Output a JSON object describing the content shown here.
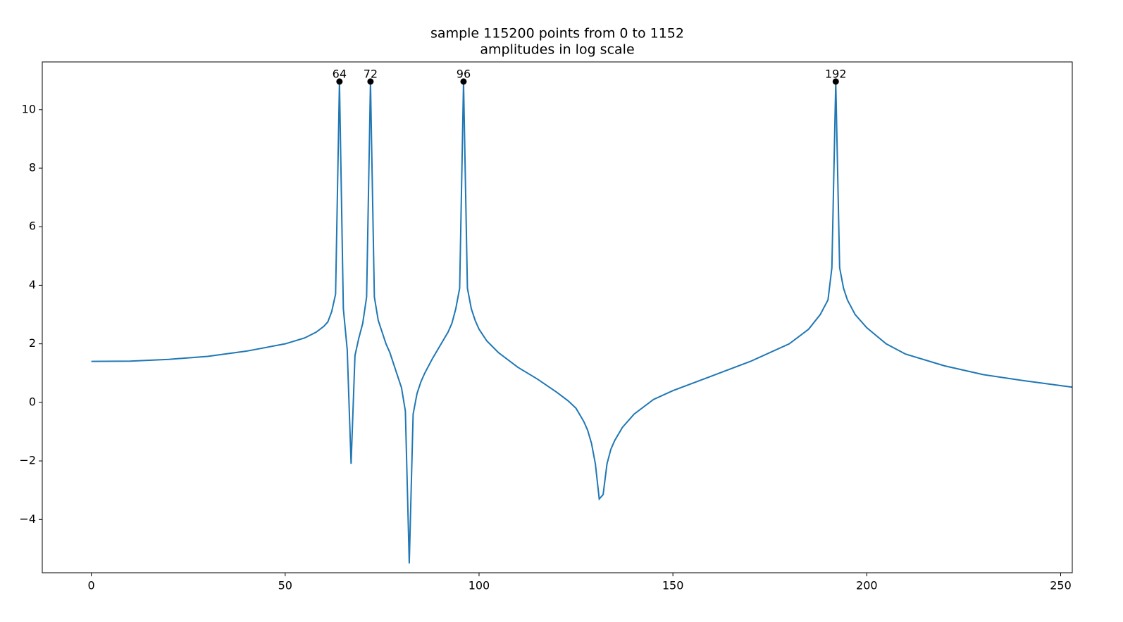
{
  "chart_data": {
    "type": "line",
    "title": "sample 115200 points from 0 to 1152",
    "subtitle": "amplitudes in log scale",
    "color": "#1f77b4",
    "x": [
      0,
      10,
      20,
      30,
      40,
      50,
      55,
      58,
      60,
      61,
      62,
      63,
      64,
      65,
      66,
      67,
      68,
      69,
      70,
      71,
      72,
      73,
      74,
      75,
      76,
      77,
      78,
      79,
      80,
      81,
      82,
      83,
      84,
      85,
      86,
      88,
      90,
      92,
      93,
      94,
      95,
      96,
      97,
      98,
      99,
      100,
      102,
      105,
      110,
      115,
      120,
      123,
      125,
      127,
      128,
      129,
      130,
      131,
      132,
      133,
      134,
      135,
      137,
      140,
      145,
      150,
      160,
      170,
      180,
      185,
      188,
      190,
      191,
      192,
      193,
      194,
      195,
      197,
      200,
      205,
      210,
      220,
      230,
      240,
      253
    ],
    "values": [
      1.4,
      1.41,
      1.47,
      1.57,
      1.75,
      2.0,
      2.2,
      2.4,
      2.6,
      2.75,
      3.1,
      3.7,
      10.95,
      3.2,
      1.8,
      -2.1,
      1.6,
      2.2,
      2.7,
      3.6,
      10.95,
      3.6,
      2.8,
      2.4,
      2.0,
      1.7,
      1.3,
      0.9,
      0.5,
      -0.3,
      -5.5,
      -0.4,
      0.3,
      0.7,
      1.0,
      1.5,
      1.95,
      2.4,
      2.7,
      3.2,
      3.9,
      10.95,
      3.9,
      3.2,
      2.8,
      2.5,
      2.1,
      1.7,
      1.2,
      0.8,
      0.35,
      0.05,
      -0.2,
      -0.65,
      -0.95,
      -1.4,
      -2.1,
      -3.3,
      -3.15,
      -2.1,
      -1.6,
      -1.3,
      -0.85,
      -0.4,
      0.1,
      0.4,
      0.9,
      1.4,
      2.0,
      2.5,
      3.0,
      3.5,
      4.6,
      10.95,
      4.6,
      3.9,
      3.5,
      3.0,
      2.55,
      2.0,
      1.65,
      1.25,
      0.95,
      0.75,
      0.52
    ],
    "peaks": {
      "type": "scatter",
      "x": [
        64,
        72,
        96,
        192
      ],
      "values": [
        10.96,
        10.96,
        10.96,
        10.96
      ],
      "color": "#000000"
    },
    "xlim": [
      -12.65,
      253
    ],
    "ylim": [
      -5.82,
      11.63
    ],
    "xticks": [
      0,
      50,
      100,
      150,
      200,
      250
    ],
    "yticks": [
      {
        "value": -4,
        "label": "−4"
      },
      {
        "value": -2,
        "label": "−2"
      },
      0,
      2,
      4,
      6,
      8,
      10
    ]
  }
}
